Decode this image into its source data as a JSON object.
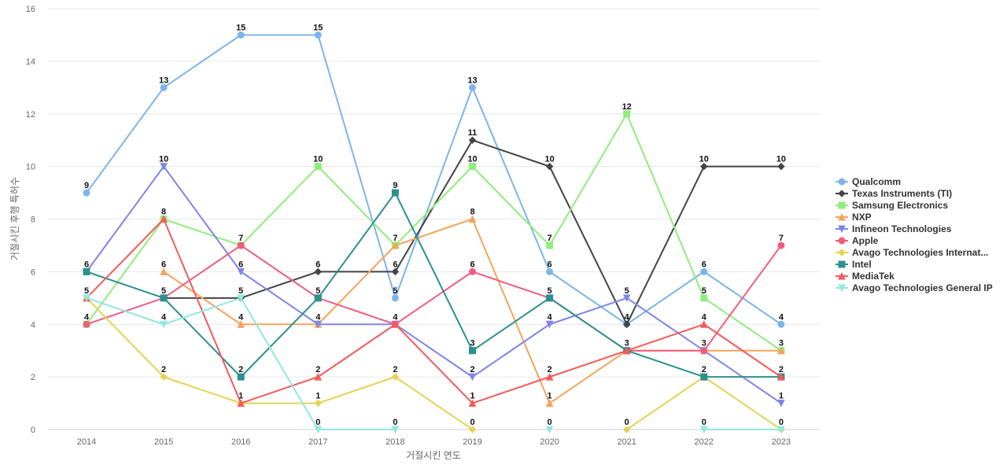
{
  "chart_data": {
    "type": "line",
    "xlabel": "거절시킨 연도",
    "ylabel": "거절시킨 후행 특허수",
    "ylim": [
      0,
      16
    ],
    "yticks": [
      0,
      2,
      4,
      6,
      8,
      10,
      12,
      14,
      16
    ],
    "grid": true,
    "legend_position": "right",
    "x": [
      "2014",
      "2015",
      "2016",
      "2017",
      "2018",
      "2019",
      "2020",
      "2021",
      "2022",
      "2023"
    ],
    "series": [
      {
        "name": "Qualcomm",
        "color": "#7cb5ec",
        "marker": "circle",
        "values": [
          9,
          13,
          15,
          15,
          5,
          13,
          6,
          4,
          6,
          4
        ]
      },
      {
        "name": "Texas Instruments (TI)",
        "color": "#434348",
        "marker": "diamond",
        "values": [
          null,
          5,
          5,
          6,
          6,
          11,
          10,
          4,
          10,
          10
        ]
      },
      {
        "name": "Samsung Electronics",
        "color": "#90ed7d",
        "marker": "square",
        "values": [
          4,
          8,
          7,
          10,
          7,
          10,
          7,
          12,
          5,
          3
        ]
      },
      {
        "name": "NXP",
        "color": "#f7a35c",
        "marker": "triangle",
        "values": [
          null,
          6,
          4,
          4,
          7,
          8,
          1,
          3,
          3,
          3
        ]
      },
      {
        "name": "Infineon Technologies",
        "color": "#8085e9",
        "marker": "triangle-down",
        "values": [
          6,
          10,
          6,
          4,
          4,
          2,
          4,
          5,
          3,
          1
        ]
      },
      {
        "name": "Apple",
        "color": "#f15c80",
        "marker": "circle",
        "values": [
          4,
          5,
          7,
          5,
          4,
          6,
          5,
          3,
          3,
          7
        ]
      },
      {
        "name": "Avago Technologies Internat...",
        "color": "#e4d354",
        "marker": "diamond",
        "values": [
          5,
          2,
          1,
          1,
          2,
          0,
          null,
          0,
          2,
          0
        ]
      },
      {
        "name": "Intel",
        "color": "#2b908f",
        "marker": "square",
        "values": [
          6,
          5,
          2,
          5,
          9,
          3,
          5,
          3,
          2,
          2
        ]
      },
      {
        "name": "MediaTek",
        "color": "#f45b5b",
        "marker": "triangle",
        "values": [
          5,
          8,
          1,
          2,
          4,
          1,
          2,
          3,
          4,
          2
        ]
      },
      {
        "name": "Avago Technologies General IP",
        "color": "#91e8e1",
        "marker": "triangle-down",
        "values": [
          5,
          4,
          5,
          0,
          0,
          null,
          0,
          null,
          0,
          0
        ]
      }
    ],
    "data_labels": [
      {
        "x": "2014",
        "values": [
          9,
          6,
          5,
          4
        ]
      },
      {
        "x": "2015",
        "values": [
          13,
          10,
          8,
          6,
          5,
          4,
          2
        ]
      },
      {
        "x": "2016",
        "values": [
          15,
          7,
          6,
          5,
          4,
          2,
          1
        ]
      },
      {
        "x": "2017",
        "values": [
          15,
          10,
          6,
          5,
          4,
          2,
          1,
          0
        ]
      },
      {
        "x": "2018",
        "values": [
          9,
          7,
          6,
          5,
          4,
          2,
          0
        ]
      },
      {
        "x": "2019",
        "values": [
          13,
          11,
          10,
          8,
          6,
          3,
          2,
          1,
          0
        ]
      },
      {
        "x": "2020",
        "values": [
          10,
          7,
          6,
          5,
          4,
          2,
          1,
          0
        ]
      },
      {
        "x": "2021",
        "values": [
          12,
          5,
          4,
          3,
          0
        ]
      },
      {
        "x": "2022",
        "values": [
          10,
          6,
          5,
          4,
          3,
          2,
          0
        ]
      },
      {
        "x": "2023",
        "values": [
          10,
          7,
          4,
          3,
          2,
          1,
          0
        ]
      }
    ]
  }
}
